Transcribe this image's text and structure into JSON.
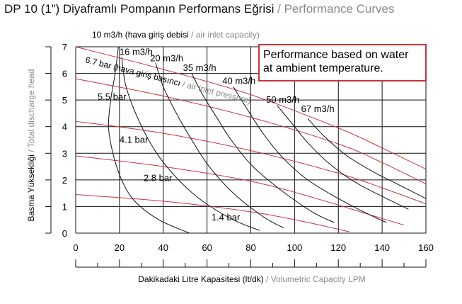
{
  "header": {
    "title_tr": "DP 10 (1”) Diyaframlı Pompanın Performans Eğrisi",
    "title_sep": "/",
    "title_en": "Performance Curves"
  },
  "note": {
    "line1": "Performance based on water",
    "line2": "at ambient temperature."
  },
  "colors": {
    "air_curve": "#111111",
    "pressure_curve": "#c8343a",
    "grid": "#111111",
    "note_border": "#c8343a",
    "english_text": "#8a8a8a"
  },
  "chart_data": {
    "type": "line",
    "xlabel_tr": "Dakikadaki Litre Kapasitesi (lt/dk)",
    "xlabel_sep": "/",
    "xlabel_en": "Volumetric Capacity LPM",
    "ylabel_tr": "Basma Yüksekliği",
    "ylabel_sep": "/",
    "ylabel_en": "Total discharge head",
    "xlim": [
      0,
      160
    ],
    "ylim": [
      0,
      7
    ],
    "x_ticks": [
      0,
      20,
      40,
      60,
      80,
      100,
      120,
      140,
      160
    ],
    "y_ticks": [
      0,
      1,
      2,
      3,
      4,
      5,
      6,
      7
    ],
    "grid": true,
    "air_legend": {
      "value": "10 m3/h",
      "tr": "(hava giriş debisi",
      "sep": "/",
      "en": "air inlet capacity)"
    },
    "pressure_legend": {
      "value": "6.7 bar",
      "tr": "(hava giriş basıncı",
      "sep": "/",
      "en": "air inlet pressure)"
    },
    "air_series": [
      {
        "name": "10 m3/h",
        "label": "",
        "label_at": [
          0,
          0
        ],
        "points": [
          [
            19.5,
            7.0
          ],
          [
            18,
            6.0
          ],
          [
            16,
            5.0
          ],
          [
            15,
            4.0
          ],
          [
            17,
            3.0
          ],
          [
            21,
            2.0
          ],
          [
            27,
            1.2
          ],
          [
            38,
            0.5
          ],
          [
            52,
            0.0
          ]
        ]
      },
      {
        "name": "16 m3/h",
        "label": "16 m3/h",
        "label_at": [
          20,
          6.7
        ],
        "points": [
          [
            21,
            6.6
          ],
          [
            23,
            5.5
          ],
          [
            29,
            4.2
          ],
          [
            37,
            3.0
          ],
          [
            47,
            2.0
          ],
          [
            58,
            1.2
          ],
          [
            72,
            0.5
          ],
          [
            84,
            0.1
          ]
        ]
      },
      {
        "name": "20 m3/h",
        "label": "20 m3/h",
        "label_at": [
          34,
          6.45
        ],
        "points": [
          [
            36.5,
            6.4
          ],
          [
            40,
            5.5
          ],
          [
            46,
            4.5
          ],
          [
            53,
            3.5
          ],
          [
            61,
            2.5
          ],
          [
            72,
            1.5
          ],
          [
            86,
            0.6
          ],
          [
            95,
            0.2
          ]
        ]
      },
      {
        "name": "35 m3/h",
        "label": "35 m3/h",
        "label_at": [
          49,
          6.1
        ],
        "points": [
          [
            53,
            6.0
          ],
          [
            58,
            5.2
          ],
          [
            64,
            4.4
          ],
          [
            71,
            3.5
          ],
          [
            81,
            2.5
          ],
          [
            94,
            1.6
          ],
          [
            108,
            0.8
          ],
          [
            118,
            0.4
          ]
        ]
      },
      {
        "name": "40 m3/h",
        "label": "40 m3/h",
        "label_at": [
          67,
          5.6
        ],
        "points": [
          [
            72,
            5.5
          ],
          [
            78,
            4.7
          ],
          [
            86,
            3.7
          ],
          [
            95,
            2.8
          ],
          [
            106,
            2.0
          ],
          [
            120,
            1.3
          ],
          [
            134,
            0.7
          ],
          [
            142,
            0.4
          ]
        ]
      },
      {
        "name": "50 m3/h",
        "label": "50 m3/h",
        "label_at": [
          87,
          4.9
        ],
        "points": [
          [
            92,
            4.8
          ],
          [
            98,
            4.2
          ],
          [
            106,
            3.4
          ],
          [
            116,
            2.6
          ],
          [
            128,
            1.9
          ],
          [
            142,
            1.3
          ],
          [
            152,
            0.9
          ]
        ]
      },
      {
        "name": "67 m3/h",
        "label": "67 m3/h",
        "label_at": [
          103,
          4.55
        ],
        "points": [
          [
            106,
            4.3
          ],
          [
            114,
            3.6
          ],
          [
            124,
            2.9
          ],
          [
            136,
            2.3
          ],
          [
            148,
            1.8
          ],
          [
            160,
            1.3
          ]
        ]
      }
    ],
    "pressure_series": [
      {
        "name": "6.7 bar",
        "label": "",
        "label_at": [
          0,
          0
        ],
        "points": [
          [
            0,
            7.0
          ],
          [
            40,
            6.15
          ],
          [
            80,
            5.2
          ],
          [
            120,
            3.95
          ],
          [
            140,
            3.2
          ],
          [
            160,
            2.4
          ]
        ]
      },
      {
        "name": "5.5 bar",
        "label": "5.5 bar",
        "label_at": [
          10,
          5.0
        ],
        "points": [
          [
            0,
            5.8
          ],
          [
            40,
            5.15
          ],
          [
            80,
            4.35
          ],
          [
            120,
            3.35
          ],
          [
            140,
            2.65
          ],
          [
            160,
            1.85
          ]
        ]
      },
      {
        "name": "4.1 bar",
        "label": "4.1 bar",
        "label_at": [
          20,
          3.4
        ],
        "points": [
          [
            0,
            4.2
          ],
          [
            40,
            3.75
          ],
          [
            80,
            3.1
          ],
          [
            120,
            2.25
          ],
          [
            140,
            1.7
          ],
          [
            160,
            1.1
          ]
        ]
      },
      {
        "name": "2.8 bar",
        "label": "2.8 bar",
        "label_at": [
          31,
          1.95
        ],
        "points": [
          [
            0,
            2.9
          ],
          [
            40,
            2.5
          ],
          [
            80,
            1.95
          ],
          [
            110,
            1.3
          ],
          [
            132,
            0.75
          ],
          [
            150,
            0.3
          ]
        ]
      },
      {
        "name": "1.4 bar",
        "label": "1.4 bar",
        "label_at": [
          62,
          0.48
        ],
        "points": [
          [
            0,
            1.45
          ],
          [
            40,
            1.2
          ],
          [
            80,
            0.8
          ],
          [
            105,
            0.42
          ],
          [
            125,
            0.05
          ]
        ]
      }
    ]
  }
}
